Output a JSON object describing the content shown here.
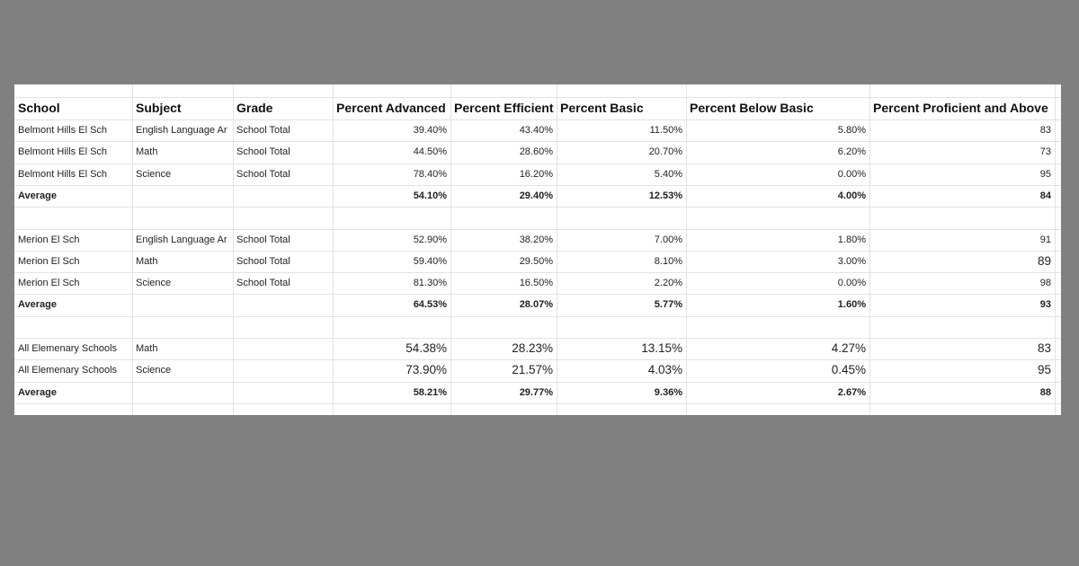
{
  "header": [
    "School",
    "Subject",
    "Grade",
    "Percent Advanced",
    "Percent Efficient",
    "Percent Basic",
    "Percent Below Basic",
    "Percent Proficient and Above"
  ],
  "sections": [
    {
      "rows": [
        {
          "school": "Belmont Hills El Sch",
          "subject": "English Language Ar",
          "grade": "School Total",
          "values": [
            "39.40%",
            "43.40%",
            "11.50%",
            "5.80%",
            "83"
          ]
        },
        {
          "school": "Belmont Hills El Sch",
          "subject": "Math",
          "grade": "School Total",
          "values": [
            "44.50%",
            "28.60%",
            "20.70%",
            "6.20%",
            "73"
          ]
        },
        {
          "school": "Belmont Hills El Sch",
          "subject": "Science",
          "grade": "School Total",
          "values": [
            "78.40%",
            "16.20%",
            "5.40%",
            "0.00%",
            "95"
          ]
        }
      ],
      "average": {
        "label": "Average",
        "values": [
          "54.10%",
          "29.40%",
          "12.53%",
          "4.00%",
          "84"
        ]
      }
    },
    {
      "rows": [
        {
          "school": "Merion El Sch",
          "subject": "English Language Ar",
          "grade": "School Total",
          "values": [
            "52.90%",
            "38.20%",
            "7.00%",
            "1.80%",
            "91"
          ]
        },
        {
          "school": "Merion El Sch",
          "subject": "Math",
          "grade": "School Total",
          "values": [
            "59.40%",
            "29.50%",
            "8.10%",
            "3.00%",
            "89"
          ]
        },
        {
          "school": "Merion El Sch",
          "subject": "Science",
          "grade": "School Total",
          "values": [
            "81.30%",
            "16.50%",
            "2.20%",
            "0.00%",
            "98"
          ]
        }
      ],
      "average": {
        "label": "Average",
        "values": [
          "64.53%",
          "28.07%",
          "5.77%",
          "1.60%",
          "93"
        ]
      }
    },
    {
      "rows": [
        {
          "school": "All Elemenary Schools",
          "subject": "Math",
          "values": [
            "54.38%",
            "28.23%",
            "13.15%",
            "4.27%",
            "83"
          ]
        },
        {
          "school": "All Elemenary Schools",
          "subject": "Science",
          "values": [
            "73.90%",
            "21.57%",
            "4.03%",
            "0.45%",
            "95"
          ]
        }
      ],
      "average": {
        "label": "Average",
        "values": [
          "58.21%",
          "29.77%",
          "9.36%",
          "2.67%",
          "88"
        ]
      }
    }
  ]
}
